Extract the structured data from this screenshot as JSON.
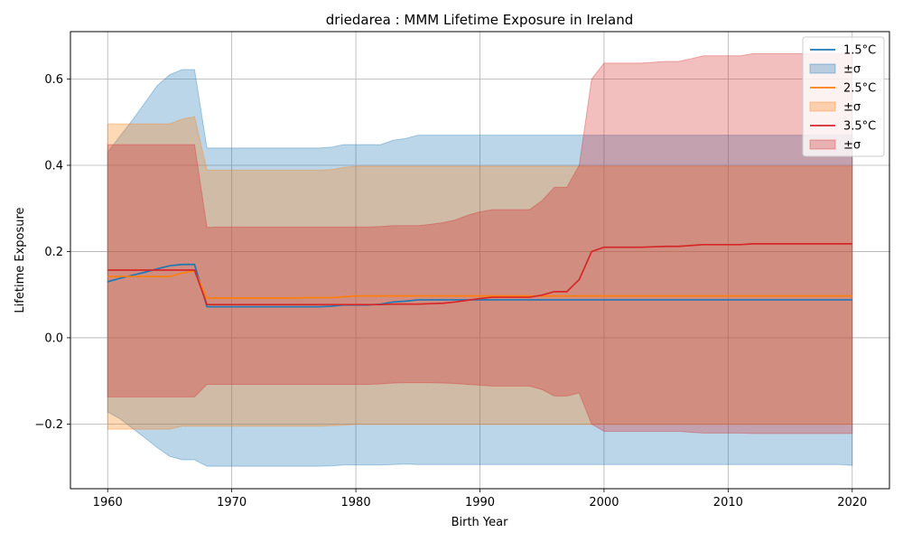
{
  "chart_data": {
    "type": "line",
    "title": "driedarea : MMM Lifetime Exposure in Ireland",
    "xlabel": "Birth Year",
    "ylabel": "Lifetime Exposure",
    "xlim": [
      1957,
      2023
    ],
    "ylim": [
      -0.35,
      0.71
    ],
    "xticks": [
      1960,
      1970,
      1980,
      1990,
      2000,
      2010,
      2020
    ],
    "yticks": [
      -0.2,
      0.0,
      0.2,
      0.4,
      0.6
    ],
    "ytick_labels": [
      "−0.2",
      "0.0",
      "0.2",
      "0.4",
      "0.6"
    ],
    "grid": true,
    "legend_position": "top-right",
    "legend_labels": [
      "1.5°C",
      "±σ",
      "2.5°C",
      "±σ",
      "3.5°C",
      "±σ"
    ],
    "x": [
      1960,
      1961,
      1962,
      1963,
      1964,
      1965,
      1966,
      1967,
      1968,
      1969,
      1970,
      1971,
      1972,
      1973,
      1974,
      1975,
      1976,
      1977,
      1978,
      1979,
      1980,
      1981,
      1982,
      1983,
      1984,
      1985,
      1986,
      1987,
      1988,
      1989,
      1990,
      1991,
      1992,
      1993,
      1994,
      1995,
      1996,
      1997,
      1998,
      1999,
      2000,
      2001,
      2002,
      2003,
      2004,
      2005,
      2006,
      2007,
      2008,
      2009,
      2010,
      2011,
      2012,
      2013,
      2014,
      2015,
      2016,
      2017,
      2018,
      2019,
      2020
    ],
    "series": [
      {
        "name": "1.5°C",
        "color": "#1f77b4",
        "mean": [
          0.13,
          0.138,
          0.145,
          0.152,
          0.16,
          0.167,
          0.17,
          0.17,
          0.072,
          0.072,
          0.072,
          0.072,
          0.072,
          0.072,
          0.072,
          0.072,
          0.072,
          0.072,
          0.073,
          0.076,
          0.076,
          0.076,
          0.078,
          0.083,
          0.085,
          0.088,
          0.088,
          0.088,
          0.088,
          0.088,
          0.088,
          0.088,
          0.088,
          0.088,
          0.088,
          0.088,
          0.088,
          0.088,
          0.088,
          0.088,
          0.088,
          0.088,
          0.088,
          0.088,
          0.088,
          0.088,
          0.088,
          0.088,
          0.088,
          0.088,
          0.088,
          0.088,
          0.088,
          0.088,
          0.088,
          0.088,
          0.088,
          0.088,
          0.088,
          0.088,
          0.088
        ],
        "upper": [
          0.43,
          0.468,
          0.505,
          0.545,
          0.585,
          0.61,
          0.622,
          0.622,
          0.44,
          0.44,
          0.44,
          0.44,
          0.44,
          0.44,
          0.44,
          0.44,
          0.44,
          0.44,
          0.442,
          0.448,
          0.448,
          0.448,
          0.448,
          0.458,
          0.462,
          0.47,
          0.47,
          0.47,
          0.47,
          0.47,
          0.47,
          0.47,
          0.47,
          0.47,
          0.47,
          0.47,
          0.47,
          0.47,
          0.47,
          0.47,
          0.47,
          0.47,
          0.47,
          0.47,
          0.47,
          0.47,
          0.47,
          0.47,
          0.47,
          0.47,
          0.47,
          0.47,
          0.47,
          0.47,
          0.47,
          0.47,
          0.47,
          0.47,
          0.47,
          0.47,
          0.47
        ],
        "lower": [
          -0.172,
          -0.188,
          -0.21,
          -0.232,
          -0.255,
          -0.275,
          -0.283,
          -0.283,
          -0.298,
          -0.298,
          -0.298,
          -0.298,
          -0.298,
          -0.298,
          -0.298,
          -0.298,
          -0.298,
          -0.298,
          -0.297,
          -0.295,
          -0.295,
          -0.295,
          -0.295,
          -0.294,
          -0.293,
          -0.294,
          -0.294,
          -0.294,
          -0.294,
          -0.294,
          -0.294,
          -0.294,
          -0.294,
          -0.294,
          -0.294,
          -0.294,
          -0.294,
          -0.294,
          -0.294,
          -0.294,
          -0.294,
          -0.294,
          -0.294,
          -0.294,
          -0.294,
          -0.294,
          -0.294,
          -0.294,
          -0.294,
          -0.294,
          -0.294,
          -0.294,
          -0.294,
          -0.294,
          -0.294,
          -0.294,
          -0.294,
          -0.294,
          -0.294,
          -0.294,
          -0.296
        ]
      },
      {
        "name": "2.5°C",
        "color": "#ff7f0e",
        "mean": [
          0.142,
          0.142,
          0.142,
          0.142,
          0.142,
          0.142,
          0.15,
          0.155,
          0.092,
          0.092,
          0.092,
          0.092,
          0.092,
          0.092,
          0.092,
          0.092,
          0.093,
          0.093,
          0.093,
          0.095,
          0.097,
          0.097,
          0.097,
          0.097,
          0.097,
          0.097,
          0.097,
          0.097,
          0.097,
          0.097,
          0.097,
          0.097,
          0.097,
          0.097,
          0.097,
          0.097,
          0.097,
          0.097,
          0.097,
          0.097,
          0.097,
          0.097,
          0.097,
          0.097,
          0.097,
          0.097,
          0.097,
          0.097,
          0.097,
          0.097,
          0.097,
          0.097,
          0.097,
          0.097,
          0.097,
          0.097,
          0.097,
          0.097,
          0.097,
          0.097,
          0.097
        ],
        "upper": [
          0.496,
          0.496,
          0.496,
          0.496,
          0.496,
          0.496,
          0.507,
          0.513,
          0.389,
          0.389,
          0.389,
          0.389,
          0.389,
          0.389,
          0.389,
          0.389,
          0.389,
          0.389,
          0.39,
          0.395,
          0.398,
          0.398,
          0.398,
          0.398,
          0.398,
          0.398,
          0.398,
          0.398,
          0.398,
          0.398,
          0.398,
          0.398,
          0.398,
          0.398,
          0.398,
          0.398,
          0.398,
          0.398,
          0.398,
          0.398,
          0.398,
          0.398,
          0.398,
          0.398,
          0.398,
          0.398,
          0.398,
          0.398,
          0.398,
          0.398,
          0.398,
          0.398,
          0.398,
          0.398,
          0.398,
          0.398,
          0.398,
          0.398,
          0.398,
          0.398,
          0.398
        ],
        "lower": [
          -0.212,
          -0.212,
          -0.212,
          -0.212,
          -0.212,
          -0.212,
          -0.205,
          -0.205,
          -0.205,
          -0.205,
          -0.205,
          -0.205,
          -0.205,
          -0.205,
          -0.205,
          -0.205,
          -0.205,
          -0.205,
          -0.204,
          -0.203,
          -0.201,
          -0.201,
          -0.201,
          -0.201,
          -0.201,
          -0.201,
          -0.201,
          -0.201,
          -0.201,
          -0.201,
          -0.201,
          -0.201,
          -0.201,
          -0.201,
          -0.201,
          -0.201,
          -0.201,
          -0.201,
          -0.201,
          -0.201,
          -0.201,
          -0.201,
          -0.201,
          -0.201,
          -0.201,
          -0.201,
          -0.201,
          -0.201,
          -0.201,
          -0.201,
          -0.201,
          -0.201,
          -0.201,
          -0.201,
          -0.201,
          -0.201,
          -0.201,
          -0.201,
          -0.201,
          -0.201,
          -0.201
        ]
      },
      {
        "name": "3.5°C",
        "color": "#d62728",
        "mean": [
          0.157,
          0.157,
          0.157,
          0.157,
          0.157,
          0.157,
          0.157,
          0.157,
          0.077,
          0.077,
          0.077,
          0.077,
          0.077,
          0.077,
          0.077,
          0.077,
          0.077,
          0.077,
          0.077,
          0.077,
          0.077,
          0.077,
          0.077,
          0.078,
          0.078,
          0.078,
          0.079,
          0.08,
          0.083,
          0.087,
          0.091,
          0.094,
          0.094,
          0.094,
          0.094,
          0.099,
          0.107,
          0.107,
          0.135,
          0.2,
          0.21,
          0.21,
          0.21,
          0.21,
          0.211,
          0.212,
          0.212,
          0.214,
          0.216,
          0.216,
          0.216,
          0.216,
          0.218,
          0.218,
          0.218,
          0.218,
          0.218,
          0.218,
          0.218,
          0.218,
          0.218
        ],
        "upper": [
          0.448,
          0.448,
          0.448,
          0.448,
          0.448,
          0.448,
          0.448,
          0.448,
          0.256,
          0.257,
          0.257,
          0.257,
          0.257,
          0.257,
          0.257,
          0.257,
          0.257,
          0.257,
          0.257,
          0.257,
          0.257,
          0.257,
          0.258,
          0.26,
          0.26,
          0.26,
          0.263,
          0.267,
          0.273,
          0.284,
          0.292,
          0.297,
          0.297,
          0.297,
          0.297,
          0.318,
          0.349,
          0.349,
          0.4,
          0.6,
          0.637,
          0.637,
          0.637,
          0.637,
          0.639,
          0.641,
          0.641,
          0.647,
          0.654,
          0.654,
          0.654,
          0.654,
          0.659,
          0.659,
          0.659,
          0.659,
          0.659,
          0.659,
          0.659,
          0.659,
          0.659
        ],
        "lower": [
          -0.137,
          -0.137,
          -0.137,
          -0.137,
          -0.137,
          -0.137,
          -0.137,
          -0.137,
          -0.108,
          -0.108,
          -0.108,
          -0.108,
          -0.108,
          -0.108,
          -0.108,
          -0.108,
          -0.108,
          -0.108,
          -0.108,
          -0.108,
          -0.108,
          -0.108,
          -0.107,
          -0.105,
          -0.104,
          -0.104,
          -0.104,
          -0.105,
          -0.106,
          -0.108,
          -0.11,
          -0.112,
          -0.112,
          -0.112,
          -0.112,
          -0.12,
          -0.135,
          -0.135,
          -0.128,
          -0.2,
          -0.217,
          -0.217,
          -0.217,
          -0.217,
          -0.217,
          -0.217,
          -0.217,
          -0.219,
          -0.221,
          -0.221,
          -0.221,
          -0.221,
          -0.222,
          -0.222,
          -0.222,
          -0.222,
          -0.222,
          -0.222,
          -0.222,
          -0.222,
          -0.222
        ]
      }
    ]
  }
}
